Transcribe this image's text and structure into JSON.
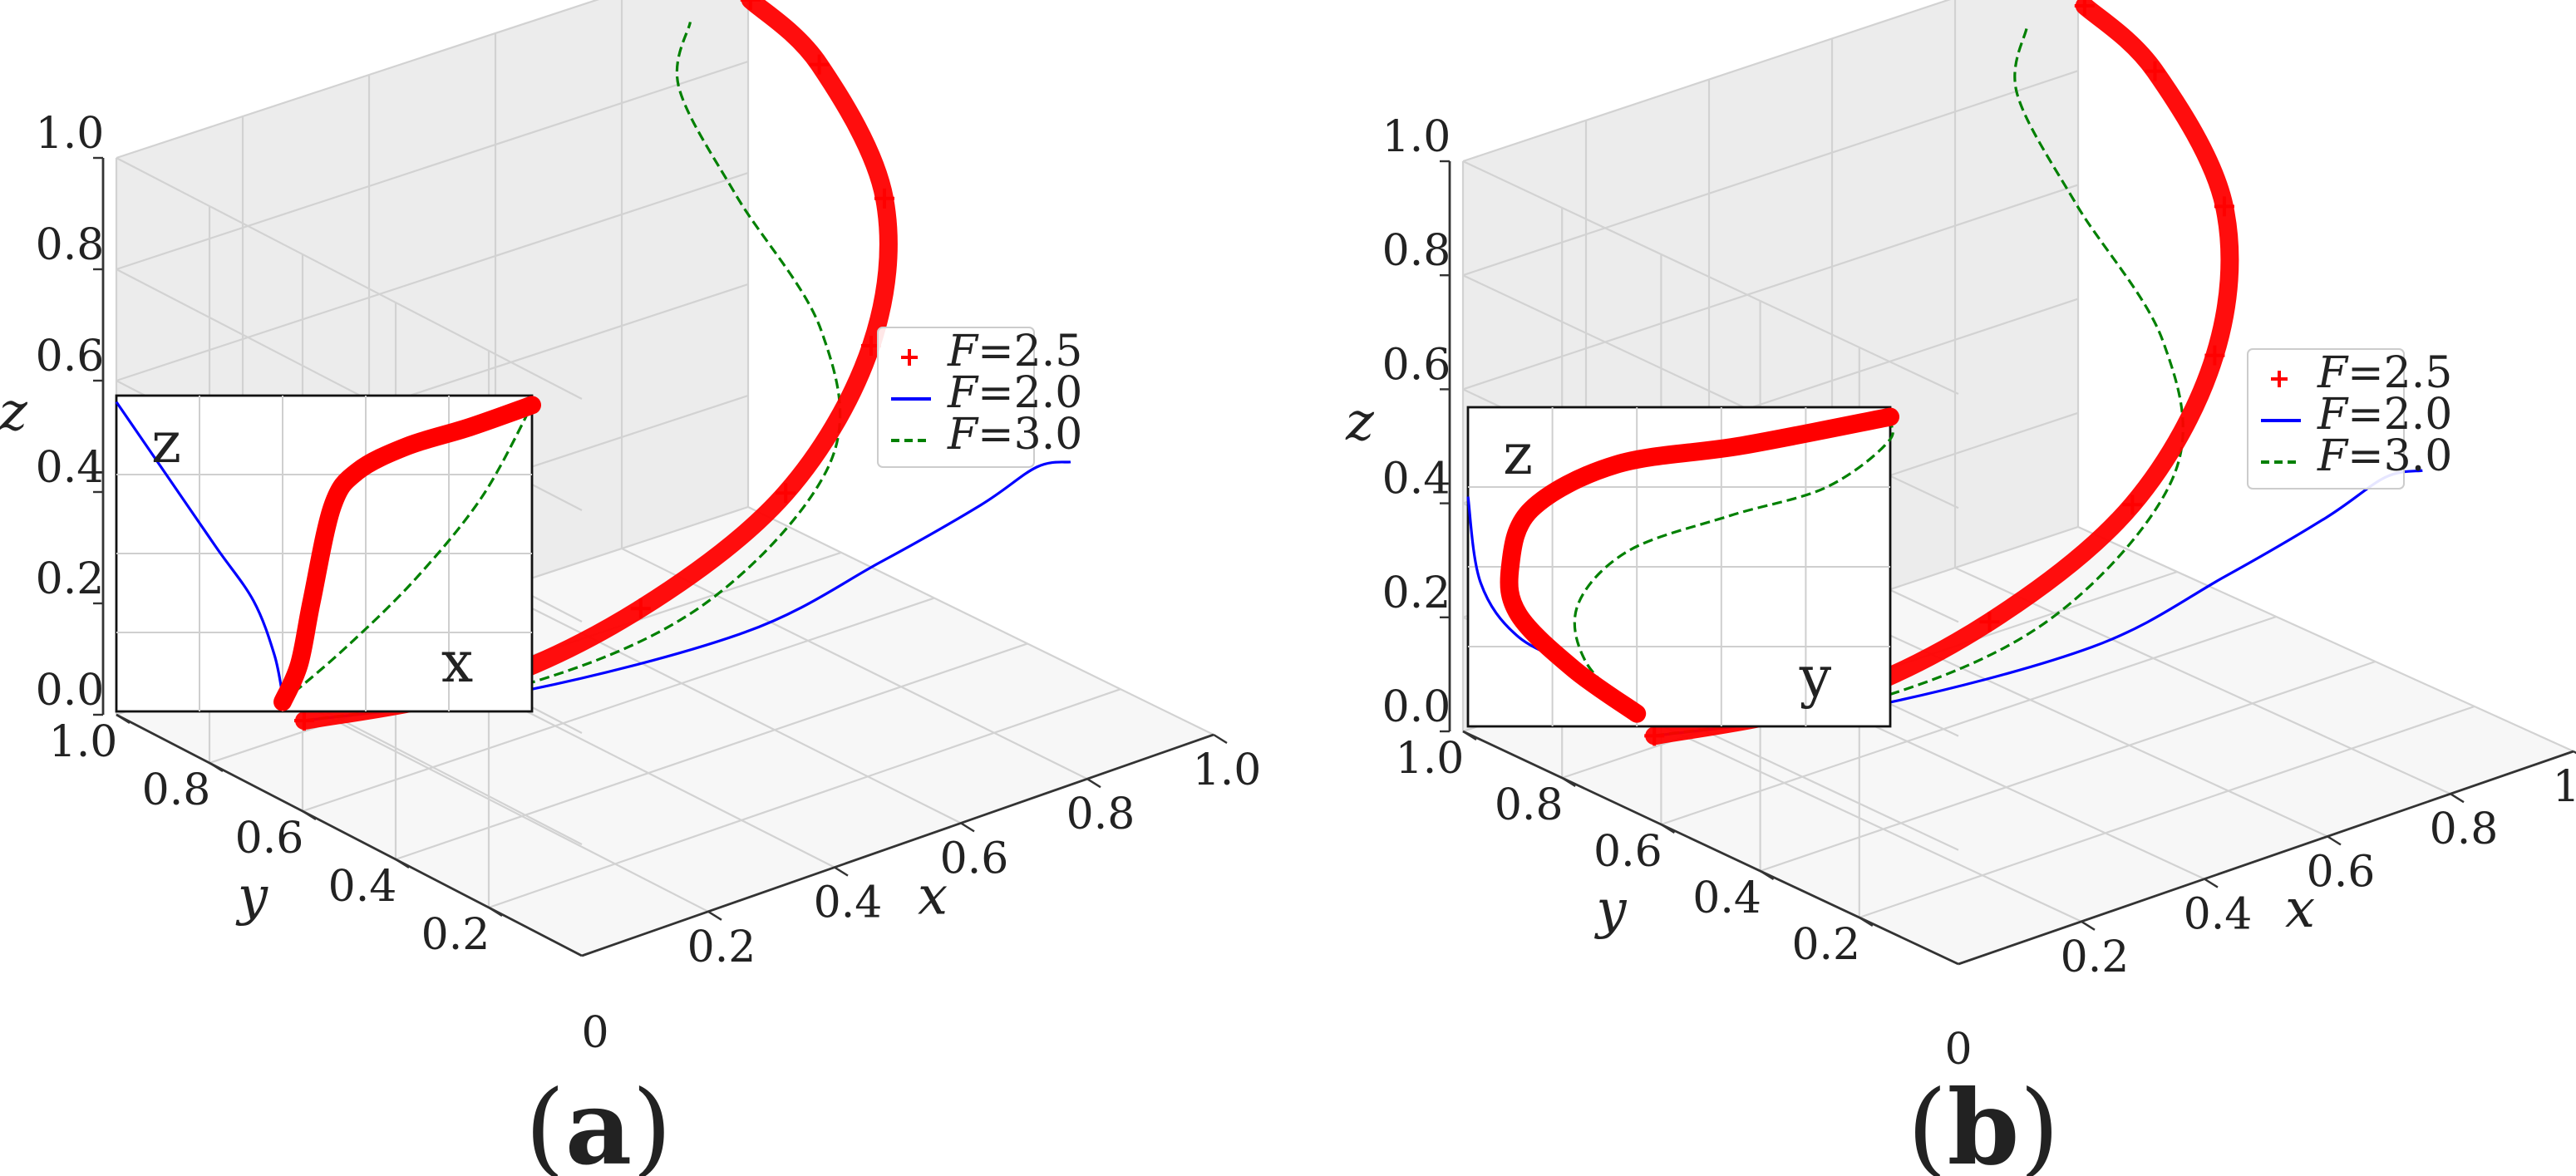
{
  "chart_data": [
    {
      "type": "line",
      "panel_label": "a",
      "xlabel": "x",
      "ylabel": "y",
      "zlabel": "z",
      "xlim": [
        0,
        1
      ],
      "ylim": [
        0,
        1
      ],
      "zlim": [
        0,
        1
      ],
      "x_ticks": [
        "0.2",
        "0.4",
        "0.6",
        "0.8",
        "1.0"
      ],
      "y_ticks": [
        "1.0",
        "0.8",
        "0.6",
        "0.4",
        "0.2"
      ],
      "z_ticks": [
        "0.0",
        "0.2",
        "0.4",
        "0.6",
        "0.8",
        "1.0"
      ],
      "origin_label": "0",
      "grid": true,
      "legend_position": "right",
      "series": [
        {
          "name": "=2.5",
          "name_prefix": "F",
          "style": "red plus markers",
          "color": "#ff0000",
          "points": [
            [
              0.15,
              0.2,
              0.02
            ],
            [
              0.35,
              0.3,
              0.05
            ],
            [
              0.55,
              0.38,
              0.15
            ],
            [
              0.75,
              0.42,
              0.3
            ],
            [
              0.9,
              0.4,
              0.5
            ],
            [
              0.98,
              0.32,
              0.7
            ],
            [
              0.98,
              0.18,
              0.88
            ],
            [
              0.93,
              0.1,
              0.98
            ]
          ]
        },
        {
          "name": "=2.0",
          "name_prefix": "F",
          "style": "solid blue",
          "color": "#0000ff",
          "points": [
            [
              0.15,
              0.2,
              0.02
            ],
            [
              0.4,
              0.32,
              0.03
            ],
            [
              0.7,
              0.4,
              0.06
            ],
            [
              0.9,
              0.42,
              0.12
            ],
            [
              1.0,
              0.5,
              0.22
            ],
            [
              1.0,
              0.62,
              0.34
            ],
            [
              0.98,
              0.72,
              0.4
            ]
          ]
        },
        {
          "name": "=3.0",
          "name_prefix": "F",
          "style": "dashed green",
          "color": "#008000",
          "points": [
            [
              0.15,
              0.2,
              0.02
            ],
            [
              0.4,
              0.32,
              0.04
            ],
            [
              0.65,
              0.38,
              0.12
            ],
            [
              0.85,
              0.38,
              0.3
            ],
            [
              0.88,
              0.32,
              0.5
            ],
            [
              0.82,
              0.22,
              0.72
            ],
            [
              0.78,
              0.15,
              0.9
            ],
            [
              0.82,
              0.12,
              0.99
            ]
          ]
        }
      ],
      "inset": {
        "xlabel": "x",
        "ylabel": "z",
        "series": [
          {
            "name": "=2.5",
            "points": [
              [
                0.4,
                0.03
              ],
              [
                0.44,
                0.15
              ],
              [
                0.47,
                0.35
              ],
              [
                0.52,
                0.65
              ],
              [
                0.58,
                0.76
              ],
              [
                0.7,
                0.84
              ],
              [
                0.85,
                0.9
              ],
              [
                1.0,
                0.97
              ]
            ]
          },
          {
            "name": "=2.0",
            "points": [
              [
                0.0,
                0.98
              ],
              [
                0.12,
                0.75
              ],
              [
                0.24,
                0.52
              ],
              [
                0.33,
                0.35
              ],
              [
                0.38,
                0.18
              ],
              [
                0.4,
                0.05
              ]
            ]
          },
          {
            "name": "=3.0",
            "points": [
              [
                0.4,
                0.03
              ],
              [
                0.55,
                0.2
              ],
              [
                0.72,
                0.42
              ],
              [
                0.88,
                0.68
              ],
              [
                1.0,
                0.97
              ]
            ]
          }
        ]
      }
    },
    {
      "type": "line",
      "panel_label": "b",
      "xlabel": "x",
      "ylabel": "y",
      "zlabel": "z",
      "xlim": [
        0,
        1
      ],
      "ylim": [
        0,
        1
      ],
      "zlim": [
        0,
        1
      ],
      "x_ticks": [
        "0.2",
        "0.4",
        "0.6",
        "0.8",
        "1.0"
      ],
      "y_ticks": [
        "1.0",
        "0.8",
        "0.6",
        "0.4",
        "0.2"
      ],
      "z_ticks": [
        "0.0",
        "0.2",
        "0.4",
        "0.6",
        "0.8",
        "1.0"
      ],
      "origin_label": "0",
      "grid": true,
      "legend_position": "right",
      "series": [
        {
          "name": "=2.5",
          "name_prefix": "F",
          "style": "red plus markers",
          "color": "#ff0000",
          "points": [
            [
              0.15,
              0.2,
              0.02
            ],
            [
              0.35,
              0.3,
              0.05
            ],
            [
              0.55,
              0.38,
              0.15
            ],
            [
              0.75,
              0.42,
              0.3
            ],
            [
              0.9,
              0.4,
              0.5
            ],
            [
              0.98,
              0.32,
              0.7
            ],
            [
              0.98,
              0.18,
              0.88
            ],
            [
              0.93,
              0.1,
              0.98
            ]
          ]
        },
        {
          "name": "=2.0",
          "name_prefix": "F",
          "style": "solid blue",
          "color": "#0000ff",
          "points": [
            [
              0.15,
              0.2,
              0.02
            ],
            [
              0.4,
              0.32,
              0.03
            ],
            [
              0.7,
              0.4,
              0.06
            ],
            [
              0.9,
              0.42,
              0.12
            ],
            [
              1.0,
              0.5,
              0.22
            ],
            [
              1.0,
              0.62,
              0.34
            ],
            [
              0.98,
              0.72,
              0.4
            ]
          ]
        },
        {
          "name": "=3.0",
          "name_prefix": "F",
          "style": "dashed green",
          "color": "#008000",
          "points": [
            [
              0.15,
              0.2,
              0.02
            ],
            [
              0.4,
              0.32,
              0.04
            ],
            [
              0.65,
              0.38,
              0.12
            ],
            [
              0.85,
              0.38,
              0.3
            ],
            [
              0.88,
              0.32,
              0.5
            ],
            [
              0.82,
              0.22,
              0.72
            ],
            [
              0.78,
              0.15,
              0.9
            ],
            [
              0.82,
              0.12,
              0.99
            ]
          ]
        }
      ],
      "inset": {
        "xlabel": "y",
        "ylabel": "z",
        "series": [
          {
            "name": "=2.5",
            "points": [
              [
                0.4,
                0.04
              ],
              [
                0.25,
                0.18
              ],
              [
                0.12,
                0.35
              ],
              [
                0.1,
                0.5
              ],
              [
                0.15,
                0.68
              ],
              [
                0.35,
                0.82
              ],
              [
                0.65,
                0.88
              ],
              [
                1.0,
                0.97
              ]
            ]
          },
          {
            "name": "=2.0",
            "points": [
              [
                0.0,
                0.72
              ],
              [
                0.03,
                0.45
              ],
              [
                0.12,
                0.28
              ],
              [
                0.28,
                0.17
              ],
              [
                0.4,
                0.04
              ]
            ]
          },
          {
            "name": "=3.0",
            "points": [
              [
                0.4,
                0.04
              ],
              [
                0.28,
                0.2
              ],
              [
                0.26,
                0.38
              ],
              [
                0.38,
                0.55
              ],
              [
                0.62,
                0.66
              ],
              [
                0.85,
                0.75
              ],
              [
                1.0,
                0.9
              ],
              [
                0.98,
                0.98
              ]
            ]
          }
        ]
      }
    }
  ]
}
